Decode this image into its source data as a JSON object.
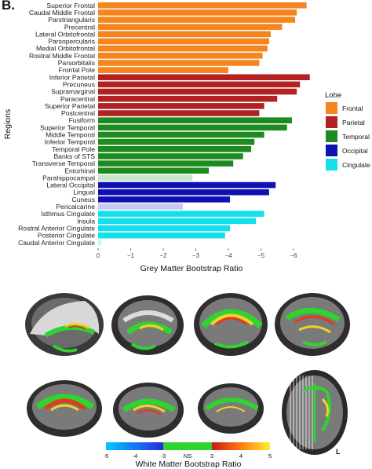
{
  "panel_label": "B.",
  "chart_data": {
    "type": "bar",
    "orientation": "horizontal",
    "xlabel": "Grey Matter Bootstrap Ratio",
    "ylabel": "Regions",
    "xlim": [
      0,
      -6.5
    ],
    "xticks": [
      "0",
      "−1",
      "−2",
      "−3",
      "−4",
      "−5",
      "−6"
    ],
    "xtick_values": [
      0,
      -1,
      -2,
      -3,
      -4,
      -5,
      -6
    ],
    "legend": {
      "title": "Lobe",
      "position": "right",
      "entries": [
        {
          "label": "Frontal",
          "color": "#f5851f"
        },
        {
          "label": "Parietal",
          "color": "#b22222"
        },
        {
          "label": "Temporal",
          "color": "#1e8b1e"
        },
        {
          "label": "Occipital",
          "color": "#1010b4"
        },
        {
          "label": "Cingulate",
          "color": "#14e0ec"
        }
      ]
    },
    "colors": {
      "Frontal": "#f5851f",
      "Frontal_light": "#ffc48a",
      "Parietal": "#b22222",
      "Parietal_light": "#e8a3a3",
      "Temporal": "#1e8b1e",
      "Temporal_light": "#c9e6c9",
      "Occipital": "#1010b4",
      "Occipital_light": "#c8c8f0",
      "Cingulate": "#14e0ec",
      "Cingulate_light": "#c8f6f8"
    },
    "bars": [
      {
        "region": "Superior Frontal",
        "lobe": "Frontal",
        "value": -6.4,
        "sig": true
      },
      {
        "region": "Caudal Middle Frontal",
        "lobe": "Frontal",
        "value": -6.1,
        "sig": true
      },
      {
        "region": "Parstriangularis",
        "lobe": "Frontal",
        "value": -6.05,
        "sig": true
      },
      {
        "region": "Precentral",
        "lobe": "Frontal",
        "value": -5.65,
        "sig": true
      },
      {
        "region": "Lateral Orbitofrontal",
        "lobe": "Frontal",
        "value": -5.3,
        "sig": true
      },
      {
        "region": "Parsopercularis",
        "lobe": "Frontal",
        "value": -5.25,
        "sig": true
      },
      {
        "region": "Medial Orbitofrontal",
        "lobe": "Frontal",
        "value": -5.2,
        "sig": true
      },
      {
        "region": "Rostral Middle Frontal",
        "lobe": "Frontal",
        "value": -5.05,
        "sig": true
      },
      {
        "region": "Parsorbitalis",
        "lobe": "Frontal",
        "value": -4.95,
        "sig": true
      },
      {
        "region": "Frontal Pole",
        "lobe": "Frontal",
        "value": -4.0,
        "sig": true
      },
      {
        "region": "Inferior Parietal",
        "lobe": "Parietal",
        "value": -6.5,
        "sig": true
      },
      {
        "region": "Precuneus",
        "lobe": "Parietal",
        "value": -6.2,
        "sig": true
      },
      {
        "region": "Supramarginal",
        "lobe": "Parietal",
        "value": -6.1,
        "sig": true
      },
      {
        "region": "Paracentral",
        "lobe": "Parietal",
        "value": -5.5,
        "sig": true
      },
      {
        "region": "Superior Parietal",
        "lobe": "Parietal",
        "value": -5.1,
        "sig": true
      },
      {
        "region": "Postcentral",
        "lobe": "Parietal",
        "value": -4.95,
        "sig": true
      },
      {
        "region": "Fusiform",
        "lobe": "Temporal",
        "value": -5.95,
        "sig": true
      },
      {
        "region": "Superior Temporal",
        "lobe": "Temporal",
        "value": -5.8,
        "sig": true
      },
      {
        "region": "Middle Temporal",
        "lobe": "Temporal",
        "value": -5.1,
        "sig": true
      },
      {
        "region": "Inferior Temporal",
        "lobe": "Temporal",
        "value": -4.8,
        "sig": true
      },
      {
        "region": "Temporal Pole",
        "lobe": "Temporal",
        "value": -4.7,
        "sig": true
      },
      {
        "region": "Banks of STS",
        "lobe": "Temporal",
        "value": -4.45,
        "sig": true
      },
      {
        "region": "Transverse Temporal",
        "lobe": "Temporal",
        "value": -4.15,
        "sig": true
      },
      {
        "region": "Entorhinal",
        "lobe": "Temporal",
        "value": -3.4,
        "sig": true
      },
      {
        "region": "Parahippocampal",
        "lobe": "Temporal",
        "value": -2.9,
        "sig": false
      },
      {
        "region": "Lateral Occipital",
        "lobe": "Occipital",
        "value": -5.45,
        "sig": true
      },
      {
        "region": "Lingual",
        "lobe": "Occipital",
        "value": -5.25,
        "sig": true
      },
      {
        "region": "Cuneus",
        "lobe": "Occipital",
        "value": -4.05,
        "sig": true
      },
      {
        "region": "Pericalcarine",
        "lobe": "Occipital",
        "value": -2.6,
        "sig": false
      },
      {
        "region": "Isthmus Cingulate",
        "lobe": "Cingulate",
        "value": -5.1,
        "sig": true
      },
      {
        "region": "Insula",
        "lobe": "Cingulate",
        "value": -4.85,
        "sig": true
      },
      {
        "region": "Rostral Anterior Cingulate",
        "lobe": "Cingulate",
        "value": -4.05,
        "sig": true
      },
      {
        "region": "Posterior Cingulate",
        "lobe": "Cingulate",
        "value": -3.9,
        "sig": true
      },
      {
        "region": "Caudal Anterior Cingulate",
        "lobe": "Cingulate",
        "value": -0.1,
        "sig": false
      }
    ]
  },
  "colorbar": {
    "title": "White Matter Bootstrap Ratio",
    "ticks": [
      "-5",
      "-4",
      "-3",
      "NS",
      "3",
      "4",
      "5"
    ]
  },
  "brain_orientation_label": "L"
}
